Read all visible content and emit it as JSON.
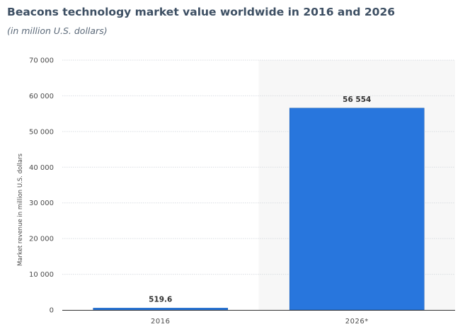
{
  "chart_data": {
    "type": "bar",
    "title": "Beacons technology market value worldwide in 2016 and 2026",
    "subtitle": "(in million U.S. dollars)",
    "xlabel": "",
    "ylabel": "Market revenue in million U.S. dollars",
    "categories": [
      "2016",
      "2026*"
    ],
    "values": [
      519.6,
      56554
    ],
    "data_labels": [
      "519.6",
      "56 554"
    ],
    "ylim": [
      0,
      70000
    ],
    "yticks": [
      0,
      10000,
      20000,
      30000,
      40000,
      50000,
      60000,
      70000
    ],
    "ytick_labels": [
      "0",
      "10 000",
      "20 000",
      "30 000",
      "40 000",
      "50 000",
      "60 000",
      "70 000"
    ],
    "grid": true,
    "highlight_category": "2026*",
    "colors": {
      "bar": "#2876dd",
      "bar_outline": "#1b5fb5",
      "gridline": "#d9dde2",
      "highlight_band": "#f7f7f7",
      "title": "#3d4f63",
      "subtitle": "#5a6878"
    }
  }
}
